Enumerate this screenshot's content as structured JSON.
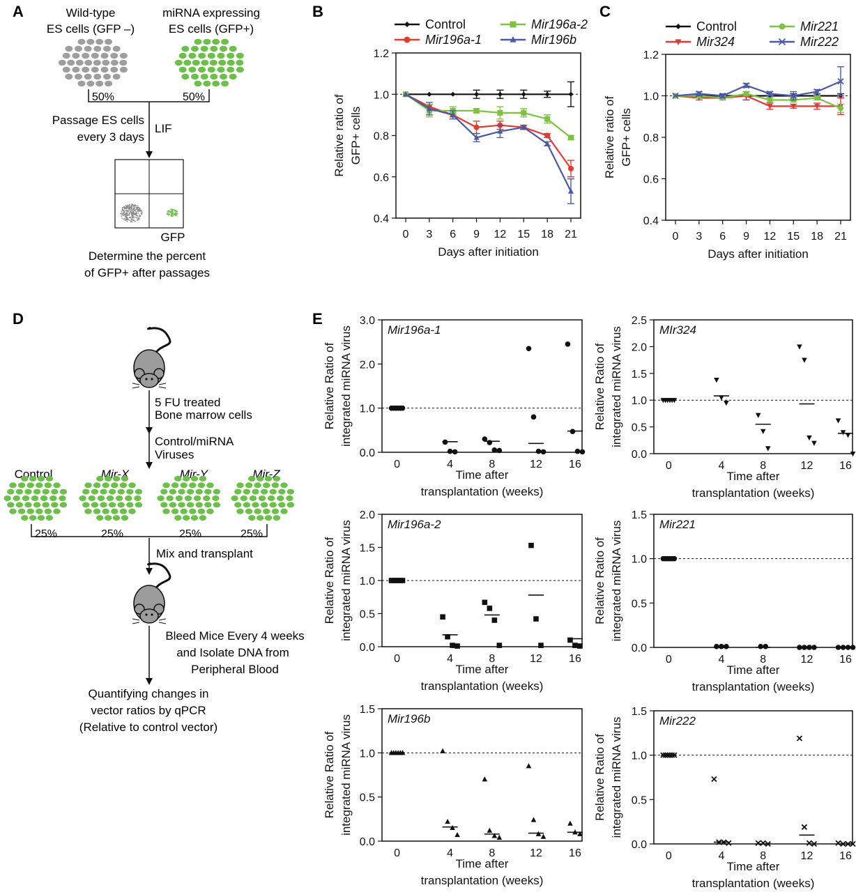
{
  "colors": {
    "black": "#111111",
    "red": "#e03a33",
    "green": "#7dc242",
    "blue": "#4a58a8",
    "gray_cells": "#9e9e9e",
    "green_cells": "#6cc04a"
  },
  "panel_a": {
    "letter": "A",
    "wt_label_1": "Wild-type",
    "wt_label_2": "ES cells (GFP –)",
    "mi_label_1": "miRNA expressing",
    "mi_label_2": "ES cells (GFP+)",
    "pct_left": "50%",
    "pct_right": "50%",
    "passage_1": "Passage ES cells",
    "passage_2": "every 3 days",
    "lif": "LIF",
    "gfp": "GFP",
    "determine_1": "Determine the percent",
    "determine_2": "of GFP+ after passages"
  },
  "panel_d": {
    "letter": "D",
    "step1_1": "5 FU treated",
    "step1_2": "Bone marrow cells",
    "step2_1": "Control/miRNA",
    "step2_2": "Viruses",
    "groups": [
      "Control",
      "Mir-X",
      "Mir-Y",
      "Mir-Z"
    ],
    "pcts": [
      "25%",
      "25%",
      "25%",
      "25%"
    ],
    "mix": "Mix and transplant",
    "bleed_1": "Bleed Mice Every 4 weeks",
    "bleed_2": "and Isolate DNA from",
    "bleed_3": "Peripheral Blood",
    "quant_1": "Quantifying changes in",
    "quant_2": "vector ratios by qPCR",
    "quant_3": "(Relative to control vector)"
  },
  "chart_data": [
    {
      "id": "B",
      "type": "line",
      "letter": "B",
      "xlabel": "Days after initiation",
      "ylabel": [
        "Relative ratio of",
        "GFP+ cells"
      ],
      "x": [
        0,
        3,
        6,
        9,
        12,
        15,
        18,
        21
      ],
      "xticks": [
        "0",
        "3",
        "6",
        "9",
        "12",
        "15",
        "18",
        "21"
      ],
      "ylim": [
        0.4,
        1.2
      ],
      "yticks": [
        "0.4",
        "0.6",
        "0.8",
        "1.0",
        "1.2"
      ],
      "reference_line": 1.0,
      "legend_placement": "top",
      "series": [
        {
          "name": "Control",
          "color": "#111111",
          "marker": "diamond",
          "values": [
            1.0,
            1.0,
            1.0,
            1.0,
            1.0,
            1.0,
            1.0,
            1.0
          ],
          "errors": [
            0,
            0,
            0,
            0.02,
            0.02,
            0.02,
            0.015,
            0.06
          ]
        },
        {
          "name": "Mir196a-1",
          "color": "#e03a33",
          "marker": "circle",
          "values": [
            1.0,
            0.94,
            0.9,
            0.84,
            0.85,
            0.84,
            0.8,
            0.64
          ],
          "errors": [
            0,
            0.01,
            0.01,
            0.03,
            0.02,
            0.01,
            0.01,
            0.04
          ]
        },
        {
          "name": "Mir196a-2",
          "color": "#7dc242",
          "marker": "square",
          "values": [
            1.0,
            0.92,
            0.92,
            0.92,
            0.91,
            0.91,
            0.88,
            0.79
          ],
          "errors": [
            0,
            0.03,
            0.02,
            0.01,
            0.03,
            0.02,
            0.02,
            0.01
          ]
        },
        {
          "name": "Mir196b",
          "color": "#4a58a8",
          "marker": "triangle",
          "values": [
            1.0,
            0.93,
            0.9,
            0.79,
            0.82,
            0.84,
            0.76,
            0.53
          ],
          "errors": [
            0,
            0.03,
            0.02,
            0.02,
            0.03,
            0.01,
            0.01,
            0.06
          ]
        }
      ]
    },
    {
      "id": "C",
      "type": "line",
      "letter": "C",
      "xlabel": "Days after initiation",
      "ylabel": [
        "Relative ratio of",
        "GFP+ cells"
      ],
      "x": [
        0,
        3,
        6,
        9,
        12,
        15,
        18,
        21
      ],
      "xticks": [
        "0",
        "3",
        "6",
        "9",
        "12",
        "15",
        "18",
        "21"
      ],
      "ylim": [
        0.4,
        1.2
      ],
      "yticks": [
        "0.4",
        "0.6",
        "0.8",
        "1.0",
        "1.2"
      ],
      "reference_line": 1.0,
      "legend_placement": "top",
      "series": [
        {
          "name": "Control",
          "color": "#111111",
          "marker": "diamond",
          "values": [
            1.0,
            1.0,
            1.0,
            1.0,
            1.0,
            1.0,
            1.0,
            1.0
          ],
          "errors": [
            0,
            0.005,
            0.005,
            0.02,
            0.01,
            0.01,
            0.01,
            0.01
          ]
        },
        {
          "name": "Mir324",
          "color": "#e03a33",
          "marker": "triangle-down",
          "values": [
            1.0,
            0.99,
            0.99,
            1.0,
            0.95,
            0.95,
            0.95,
            0.95
          ],
          "errors": [
            0,
            0.01,
            0.01,
            0.02,
            0.015,
            0.01,
            0.015,
            0.04
          ]
        },
        {
          "name": "Mir221",
          "color": "#7dc242",
          "marker": "circle",
          "values": [
            1.0,
            1.0,
            0.99,
            1.01,
            0.98,
            0.98,
            0.99,
            0.94
          ],
          "errors": [
            0,
            0.01,
            0.01,
            0.01,
            0.01,
            0.01,
            0.01,
            0.02
          ]
        },
        {
          "name": "Mir222",
          "color": "#4a58a8",
          "marker": "x",
          "values": [
            1.0,
            1.01,
            1.0,
            1.05,
            1.01,
            1.0,
            1.02,
            1.07
          ],
          "errors": [
            0,
            0.01,
            0.01,
            0.01,
            0.01,
            0.02,
            0.01,
            0.07
          ]
        }
      ]
    },
    {
      "id": "E1",
      "type": "scatter",
      "letter": "E",
      "title": "Mir196a-1",
      "xlabel": [
        "Time after",
        "transplantation (weeks)"
      ],
      "ylabel": [
        "Relative Ratio of",
        "integrated miRNA virus"
      ],
      "xticks": [
        "0",
        "4",
        "8",
        "12",
        "16"
      ],
      "ylim": [
        0,
        3.0
      ],
      "yticks": [
        "0.0",
        "1.0",
        "2.0",
        "3.0"
      ],
      "reference_line": 1.0,
      "marker": "circle",
      "groups": [
        {
          "x": 0,
          "values": [
            1,
            1,
            1,
            1,
            1,
            1
          ],
          "mean": 1.0
        },
        {
          "x": 4,
          "values": [
            0.23,
            0.02,
            0.01
          ],
          "mean": 0.24
        },
        {
          "x": 8,
          "values": [
            0.3,
            0.22,
            0.05,
            0.04
          ],
          "mean": 0.25
        },
        {
          "x": 12,
          "values": [
            2.35,
            0.8,
            0.02,
            0.01
          ],
          "mean": 0.2
        },
        {
          "x": 16,
          "values": [
            2.45,
            0.47,
            0.02,
            0.01
          ],
          "mean": 0.48
        }
      ]
    },
    {
      "id": "E2",
      "type": "scatter",
      "title": "MIr324",
      "xlabel": [
        "Time after",
        "transplantation (weeks)"
      ],
      "ylabel": [
        "Relative Ratio of",
        "integrated miRNA virus"
      ],
      "xticks": [
        "0",
        "4",
        "8",
        "12",
        "16"
      ],
      "ylim": [
        0,
        2.5
      ],
      "yticks": [
        "0.0",
        "0.5",
        "1.0",
        "1.5",
        "2.0",
        "2.5"
      ],
      "reference_line": 1.0,
      "marker": "triangle-down",
      "groups": [
        {
          "x": 0,
          "values": [
            1,
            1,
            1,
            1,
            1,
            1
          ],
          "mean": 1.0
        },
        {
          "x": 4,
          "values": [
            1.38,
            1.05,
            0.95
          ],
          "mean": 1.08
        },
        {
          "x": 8,
          "values": [
            0.72,
            0.42,
            0.1
          ],
          "mean": 0.55
        },
        {
          "x": 12,
          "values": [
            2.0,
            1.75,
            0.3,
            0.2
          ],
          "mean": 0.93
        },
        {
          "x": 16,
          "values": [
            0.62,
            0.4,
            0.35,
            0.0
          ],
          "mean": 0.38
        }
      ]
    },
    {
      "id": "E3",
      "type": "scatter",
      "title": "Mir196a-2",
      "xlabel": [
        "Time after",
        "transplantation (weeks)"
      ],
      "ylabel": [
        "Relative Ratio of",
        "integrated miRNA virus"
      ],
      "xticks": [
        "0",
        "4",
        "8",
        "12",
        "16"
      ],
      "ylim": [
        0,
        2.0
      ],
      "yticks": [
        "0.0",
        "0.5",
        "1.0",
        "1.5",
        "2.0"
      ],
      "reference_line": 1.0,
      "marker": "square",
      "groups": [
        {
          "x": 0,
          "values": [
            1,
            1,
            1,
            1,
            1,
            1
          ],
          "mean": 1.0
        },
        {
          "x": 4,
          "values": [
            0.45,
            0.15,
            0.02,
            0.01
          ],
          "mean": 0.18
        },
        {
          "x": 8,
          "values": [
            0.67,
            0.58,
            0.4,
            0.02
          ],
          "mean": 0.48
        },
        {
          "x": 12,
          "values": [
            1.53,
            0.42,
            0.02
          ],
          "mean": 0.78
        },
        {
          "x": 16,
          "values": [
            0.1,
            0.02,
            0.01
          ],
          "mean": 0.12
        }
      ]
    },
    {
      "id": "E4",
      "type": "scatter",
      "title": "Mir221",
      "xlabel": [
        "Time after",
        "transplantation (weeks)"
      ],
      "ylabel": [
        "Relative Ratio of",
        "integrated miRNA virus"
      ],
      "xticks": [
        "0",
        "4",
        "8",
        "12",
        "16"
      ],
      "ylim": [
        0,
        1.5
      ],
      "yticks": [
        "0.0",
        "0.5",
        "1.0",
        "1.5"
      ],
      "reference_line": 1.0,
      "marker": "circle",
      "groups": [
        {
          "x": 0,
          "values": [
            1,
            1,
            1,
            1,
            1,
            1
          ],
          "mean": 1.0
        },
        {
          "x": 4,
          "values": [
            0.01,
            0.01,
            0.01
          ],
          "mean": 0.0
        },
        {
          "x": 8,
          "values": [
            0.01,
            0.01
          ],
          "mean": 0.0
        },
        {
          "x": 12,
          "values": [
            0.0,
            0.0,
            0.0,
            0.0
          ],
          "mean": 0.0
        },
        {
          "x": 16,
          "values": [
            0.0,
            0.0,
            0.0,
            0.0
          ],
          "mean": 0.0
        }
      ]
    },
    {
      "id": "E5",
      "type": "scatter",
      "title": "Mir196b",
      "xlabel": [
        "Time after",
        "transplantation (weeks)"
      ],
      "ylabel": [
        "Relative Ratio of",
        "integrated miRNA virus"
      ],
      "xticks": [
        "0",
        "4",
        "8",
        "12",
        "16"
      ],
      "ylim": [
        0,
        1.5
      ],
      "yticks": [
        "0.0",
        "0.5",
        "1.0",
        "1.5"
      ],
      "reference_line": 1.0,
      "marker": "triangle",
      "groups": [
        {
          "x": 0,
          "values": [
            1,
            1,
            1,
            1,
            1,
            1
          ],
          "mean": 1.0
        },
        {
          "x": 4,
          "values": [
            1.02,
            0.22,
            0.15,
            0.07
          ],
          "mean": 0.16
        },
        {
          "x": 8,
          "values": [
            0.7,
            0.12,
            0.06,
            0.04
          ],
          "mean": 0.08
        },
        {
          "x": 12,
          "values": [
            0.85,
            0.24,
            0.08,
            0.05
          ],
          "mean": 0.09
        },
        {
          "x": 16,
          "values": [
            0.2,
            0.1,
            0.08
          ],
          "mean": 0.1
        }
      ]
    },
    {
      "id": "E6",
      "type": "scatter",
      "title": "Mir222",
      "xlabel": [
        "Time after",
        "transplantation (weeks)"
      ],
      "ylabel": [
        "Relative Ratio of",
        "integrated miRNA virus"
      ],
      "xticks": [
        "0",
        "4",
        "8",
        "12",
        "16"
      ],
      "ylim": [
        0,
        1.5
      ],
      "yticks": [
        "0.0",
        "0.5",
        "1.0",
        "1.5"
      ],
      "reference_line": 1.0,
      "marker": "x",
      "groups": [
        {
          "x": 0,
          "values": [
            1,
            1,
            1,
            1,
            1,
            1
          ],
          "mean": 1.0
        },
        {
          "x": 4,
          "values": [
            0.73,
            0.02,
            0.02,
            0.01
          ],
          "mean": 0.02
        },
        {
          "x": 8,
          "values": [
            0.01,
            0.01,
            0.0
          ],
          "mean": 0.0
        },
        {
          "x": 12,
          "values": [
            1.19,
            0.19,
            0.01,
            0.0
          ],
          "mean": 0.1
        },
        {
          "x": 16,
          "values": [
            0.01,
            0.0,
            0.0,
            0.0
          ],
          "mean": 0.0
        }
      ]
    }
  ]
}
